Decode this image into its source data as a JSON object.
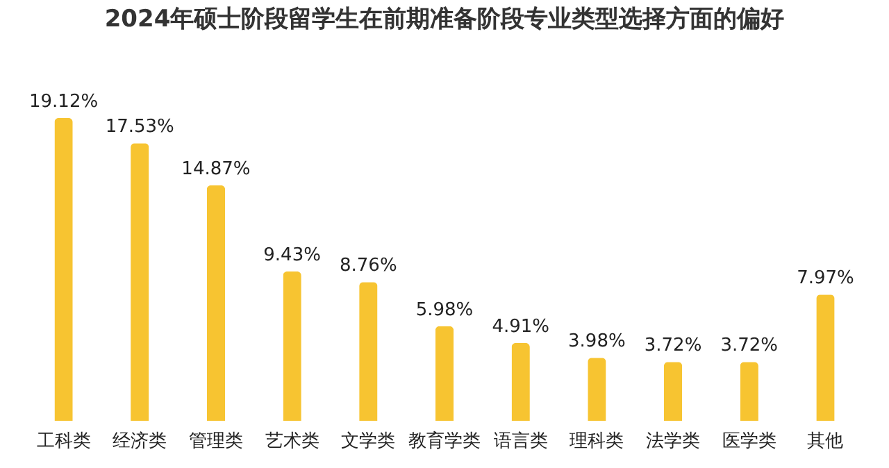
{
  "chart_data": {
    "type": "bar",
    "title": "2024年硕士阶段留学生在前期准备阶段专业类型选择方面的偏好",
    "categories": [
      "工科类",
      "经济类",
      "管理类",
      "艺术类",
      "文学类",
      "教育学类",
      "语言类",
      "理科类",
      "法学类",
      "医学类",
      "其他"
    ],
    "values": [
      19.12,
      17.53,
      14.87,
      9.43,
      8.76,
      5.98,
      4.91,
      3.98,
      3.72,
      3.72,
      7.97
    ],
    "value_labels": [
      "19.12%",
      "17.53%",
      "14.87%",
      "9.43%",
      "8.76%",
      "5.98%",
      "4.91%",
      "3.98%",
      "3.72%",
      "3.72%",
      "7.97%"
    ],
    "color": "#f7c431"
  }
}
